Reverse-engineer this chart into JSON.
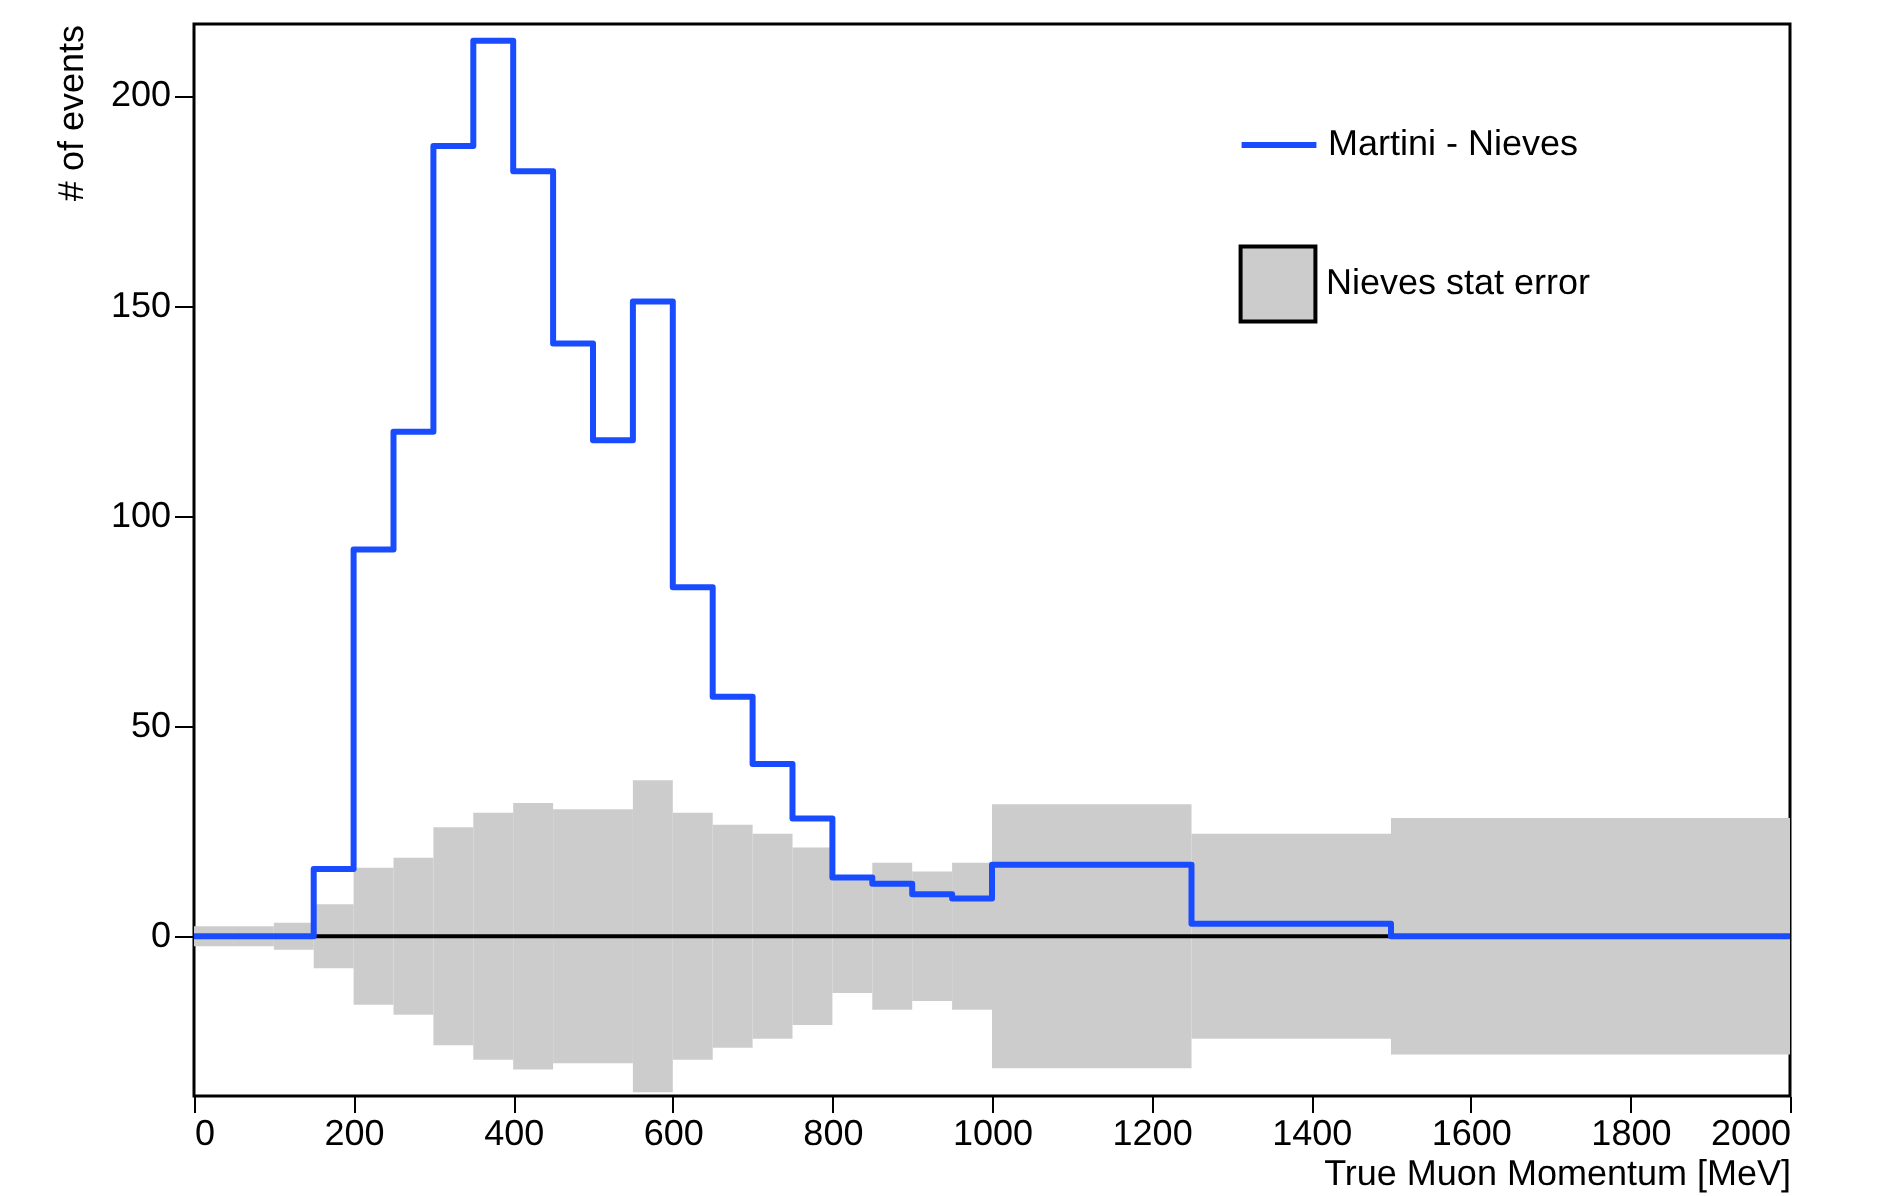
{
  "chart_data": {
    "type": "histogram",
    "xlabel": "True Muon Momentum [MeV]",
    "ylabel": "# of events",
    "bins": [
      0,
      50,
      100,
      150,
      200,
      250,
      300,
      350,
      400,
      450,
      500,
      550,
      600,
      650,
      700,
      750,
      800,
      850,
      900,
      950,
      1000,
      1250,
      1500,
      2000
    ],
    "series": [
      {
        "name": "Martini - Nieves",
        "color": "#1a4cff",
        "values": [
          0,
          0,
          0,
          16,
          92,
          120,
          188,
          213,
          182,
          141,
          118,
          151,
          83,
          57,
          41,
          28,
          14,
          12.5,
          10,
          9,
          17,
          3,
          0
        ]
      },
      {
        "name": "Nieves stat error",
        "color": "#cccccc",
        "values": [
          4.8,
          4.8,
          6.4,
          15.2,
          32.6,
          37.4,
          51.8,
          58.8,
          63.4,
          60.4,
          60.4,
          74.2,
          58.8,
          53,
          48.8,
          42.2,
          27,
          35,
          30.8,
          35,
          62.8,
          48.8,
          56.2
        ],
        "base": [
          -2.4,
          -2.4,
          -3.2,
          -7.6,
          -16.3,
          -18.7,
          -25.9,
          -29.4,
          -31.7,
          -30.2,
          -30.2,
          -37.1,
          -29.4,
          -26.5,
          -24.4,
          -21.1,
          -13.5,
          -17.5,
          -15.4,
          -17.5,
          -31.4,
          -24.4,
          -28.1
        ]
      }
    ],
    "ref_lines": [
      {
        "axis": "y",
        "value": 0,
        "color": "#000000"
      }
    ],
    "xlim": [
      0,
      2000
    ],
    "xticks": [
      0,
      200,
      400,
      600,
      800,
      1000,
      1200,
      1400,
      1600,
      1800,
      2000
    ],
    "ylim": [
      -38,
      217
    ],
    "yticks": [
      0,
      50,
      100,
      150,
      200
    ],
    "grid": false,
    "legend": "top right"
  }
}
